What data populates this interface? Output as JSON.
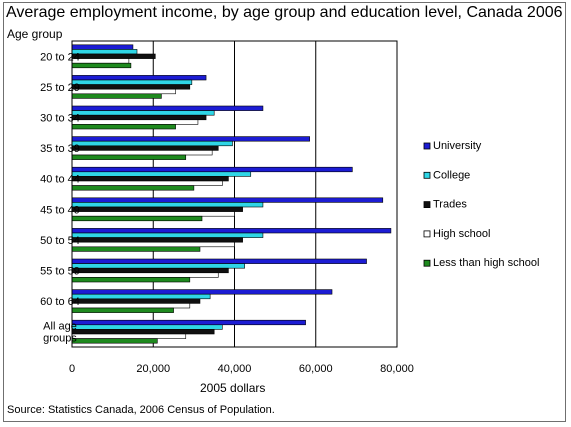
{
  "chart_data": {
    "type": "bar",
    "orientation": "horizontal",
    "title": "Average employment income, by age group and education level, Canada 2006",
    "ylabel": "Age group",
    "xlabel": "2005 dollars",
    "source": "Source: Statistics Canada, 2006 Census of Population.",
    "categories": [
      "20 to 24",
      "25 to 29",
      "30 to 34",
      "35 to 39",
      "40 to 44",
      "45 to 49",
      "50 to 54",
      "55 to 59",
      "60 to 64",
      "All age groups"
    ],
    "category_lines": [
      [
        "20 to 24"
      ],
      [
        "25 to 29"
      ],
      [
        "30 to 34"
      ],
      [
        "35 to 39"
      ],
      [
        "40 to 44"
      ],
      [
        "45 to 49"
      ],
      [
        "50 to 54"
      ],
      [
        "55 to 59"
      ],
      [
        "60 to 64"
      ],
      [
        "All age",
        "groups"
      ]
    ],
    "series": [
      {
        "name": "University",
        "color": "#1c1cd4",
        "values": [
          15000,
          33000,
          47000,
          58500,
          69000,
          76500,
          78500,
          72500,
          64000,
          57500
        ]
      },
      {
        "name": "College",
        "color": "#2fd6e6",
        "values": [
          16000,
          29500,
          35000,
          39500,
          44000,
          47000,
          47000,
          42500,
          34000,
          37000
        ]
      },
      {
        "name": "Trades",
        "color": "#101010",
        "values": [
          20500,
          29000,
          33000,
          36000,
          38500,
          42000,
          42000,
          38500,
          31500,
          35000
        ]
      },
      {
        "name": "High school",
        "color": "#ffffff",
        "values": [
          14000,
          25500,
          31000,
          34500,
          37000,
          40000,
          40000,
          36000,
          29000,
          28000
        ]
      },
      {
        "name": "Less than high school",
        "color": "#1e8a1e",
        "values": [
          14500,
          22000,
          25500,
          28000,
          30000,
          32000,
          31500,
          29000,
          25000,
          21000
        ]
      }
    ],
    "xlim": [
      0,
      80000
    ],
    "xticks": [
      0,
      20000,
      40000,
      60000,
      80000
    ],
    "xtick_labels": [
      "0",
      "20,000",
      "40,000",
      "60,000",
      "80,000"
    ],
    "grid": "vertical",
    "legend_position": "right"
  }
}
